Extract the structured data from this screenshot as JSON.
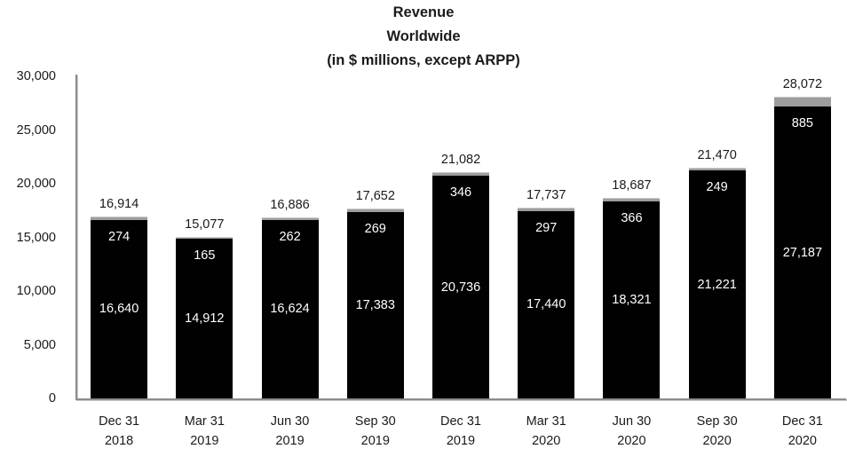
{
  "title": {
    "line1": "Revenue",
    "line2": "Worldwide",
    "line3": "(in $ millions, except ARPP)"
  },
  "chart_data": {
    "type": "bar",
    "stacked": true,
    "title": "Revenue Worldwide (in $ millions, except ARPP)",
    "xlabel": "",
    "ylabel": "",
    "grid": false,
    "legend": "none",
    "y_axis": {
      "min": 0,
      "max": 30000,
      "step": 5000,
      "tick_labels": [
        "0",
        "5,000",
        "10,000",
        "15,000",
        "20,000",
        "25,000",
        "30,000"
      ]
    },
    "categories": [
      {
        "line1": "Dec 31",
        "line2": "2018"
      },
      {
        "line1": "Mar 31",
        "line2": "2019"
      },
      {
        "line1": "Jun 30",
        "line2": "2019"
      },
      {
        "line1": "Sep 30",
        "line2": "2019"
      },
      {
        "line1": "Dec 31",
        "line2": "2019"
      },
      {
        "line1": "Mar 31",
        "line2": "2020"
      },
      {
        "line1": "Jun 30",
        "line2": "2020"
      },
      {
        "line1": "Sep 30",
        "line2": "2020"
      },
      {
        "line1": "Dec 31",
        "line2": "2020"
      }
    ],
    "series": [
      {
        "segment": "bottom",
        "color": "#010101",
        "label_color": "#ffffff",
        "values": [
          16640,
          14912,
          16624,
          17383,
          20736,
          17440,
          18321,
          21221,
          27187
        ],
        "labels": [
          "16,640",
          "14,912",
          "16,624",
          "17,383",
          "20,736",
          "17,440",
          "18,321",
          "21,221",
          "27,187"
        ]
      },
      {
        "segment": "top",
        "color": "#9d9d9d",
        "label_color": "#ffffff",
        "values": [
          274,
          165,
          262,
          269,
          346,
          297,
          366,
          249,
          885
        ],
        "labels": [
          "274",
          "165",
          "262",
          "269",
          "346",
          "297",
          "366",
          "249",
          "885"
        ]
      }
    ],
    "totals": [
      16914,
      15077,
      16886,
      17652,
      21082,
      17737,
      18687,
      21470,
      28072
    ],
    "total_labels": [
      "16,914",
      "15,077",
      "16,886",
      "17,652",
      "21,082",
      "17,737",
      "18,687",
      "21,470",
      "28,072"
    ],
    "colors": {
      "bar_primary": "#010101",
      "bar_secondary": "#9d9d9d",
      "axis_line": "#8c8c8c",
      "text": "#1a1a1a",
      "label_inside": "#ffffff"
    }
  }
}
